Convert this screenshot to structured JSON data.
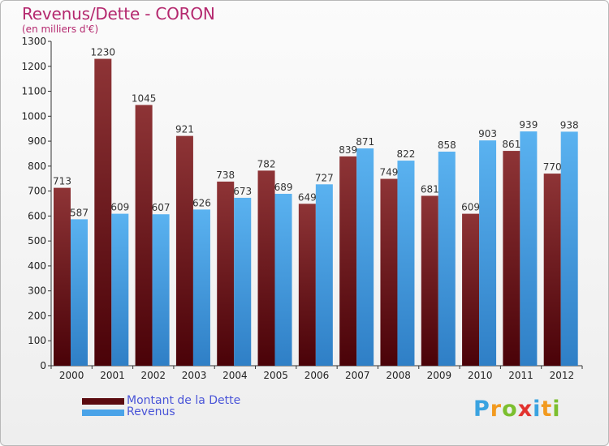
{
  "title": "Revenus/Dette - CORON",
  "subtitle": "(en milliers d'€)",
  "chart_data": {
    "type": "bar",
    "title": "Revenus/Dette - CORON",
    "subtitle": "(en milliers d'€)",
    "xlabel": "",
    "ylabel": "",
    "categories": [
      "2000",
      "2001",
      "2002",
      "2003",
      "2004",
      "2005",
      "2006",
      "2007",
      "2008",
      "2009",
      "2010",
      "2011",
      "2012"
    ],
    "series": [
      {
        "name": "Montant de la Dette",
        "color": "#6b1419",
        "values": [
          713,
          1230,
          1045,
          921,
          738,
          782,
          649,
          839,
          749,
          681,
          609,
          861,
          770
        ],
        "labels": [
          "713",
          "1230",
          "1045",
          "921",
          "738",
          "782",
          "649",
          "839",
          "749",
          "681",
          "609",
          "861",
          "770"
        ]
      },
      {
        "name": "Revenus",
        "color": "#4aa3e8",
        "values": [
          587,
          609,
          607,
          626,
          673,
          689,
          727,
          871,
          822,
          858,
          903,
          939,
          938
        ],
        "labels": [
          "587",
          "609",
          "607",
          "626",
          "673",
          "689",
          "727",
          "871",
          "822",
          "858",
          "903",
          "939",
          "938"
        ]
      }
    ],
    "ylim": [
      0,
      1300
    ],
    "yticks": [
      0,
      100,
      200,
      300,
      400,
      500,
      600,
      700,
      800,
      900,
      1000,
      1100,
      1200,
      1300
    ],
    "ytick_labels": [
      "0",
      "100",
      "200",
      "300",
      "400",
      "500",
      "600",
      "700",
      "800",
      "900",
      "1000",
      "1100",
      "1200",
      "1300"
    ],
    "grid": false,
    "legend": "bottom-left"
  },
  "legend": {
    "dette_label": "Montant de la Dette",
    "revenus_label": "Revenus"
  },
  "logo": {
    "letters": [
      "P",
      "r",
      "o",
      "x",
      "i",
      "t",
      "i"
    ],
    "colors": [
      "#3aa3e0",
      "#f29a1f",
      "#7cbf2f",
      "#e2322e",
      "#3aa3e0",
      "#f29a1f",
      "#7cbf2f"
    ]
  }
}
